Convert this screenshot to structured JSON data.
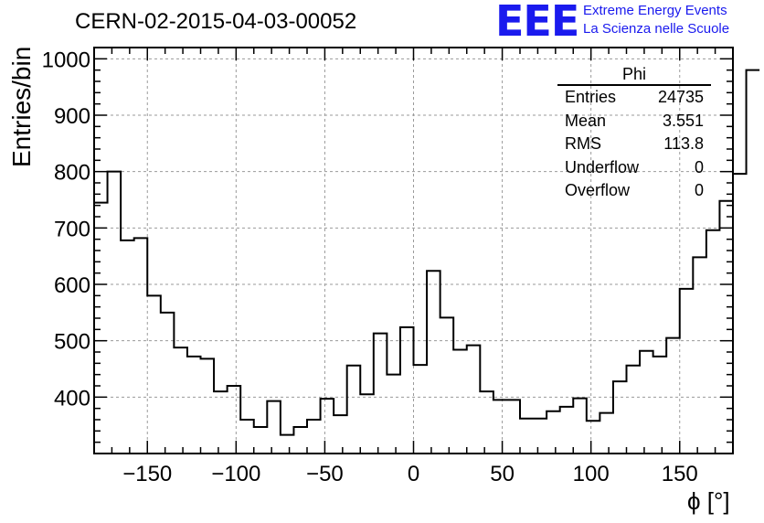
{
  "header": {
    "title": "CERN-02-2015-04-03-00052",
    "logo": "EEE",
    "logo_line1": "Extreme Energy Events",
    "logo_line2": "La Scienza nelle Scuole"
  },
  "stats": {
    "title": "Phi",
    "rows": [
      {
        "label": "Entries",
        "value": "24735"
      },
      {
        "label": "Mean",
        "value": "3.551"
      },
      {
        "label": "RMS",
        "value": "113.8"
      },
      {
        "label": "Underflow",
        "value": "0"
      },
      {
        "label": "Overflow",
        "value": "0"
      }
    ]
  },
  "chart_data": {
    "type": "histogram",
    "title": "CERN-02-2015-04-03-00052",
    "xlabel": "ϕ [°]",
    "ylabel": "Entries/bin",
    "xlim": [
      -180,
      180
    ],
    "ylim": [
      300,
      1020
    ],
    "xticks": [
      -150,
      -100,
      -50,
      0,
      50,
      100,
      150
    ],
    "yticks": [
      400,
      500,
      600,
      700,
      800,
      900,
      1000
    ],
    "grid": true,
    "bin_width": 7.5,
    "bin_start": -180,
    "values": [
      745,
      800,
      678,
      682,
      580,
      550,
      488,
      472,
      468,
      410,
      420,
      360,
      347,
      393,
      333,
      347,
      360,
      397,
      368,
      456,
      405,
      513,
      440,
      524,
      457,
      624,
      541,
      484,
      492,
      410,
      395,
      395,
      362,
      362,
      375,
      383,
      398,
      358,
      372,
      428,
      456,
      482,
      472,
      505,
      592,
      648,
      696,
      748,
      796,
      980
    ]
  }
}
